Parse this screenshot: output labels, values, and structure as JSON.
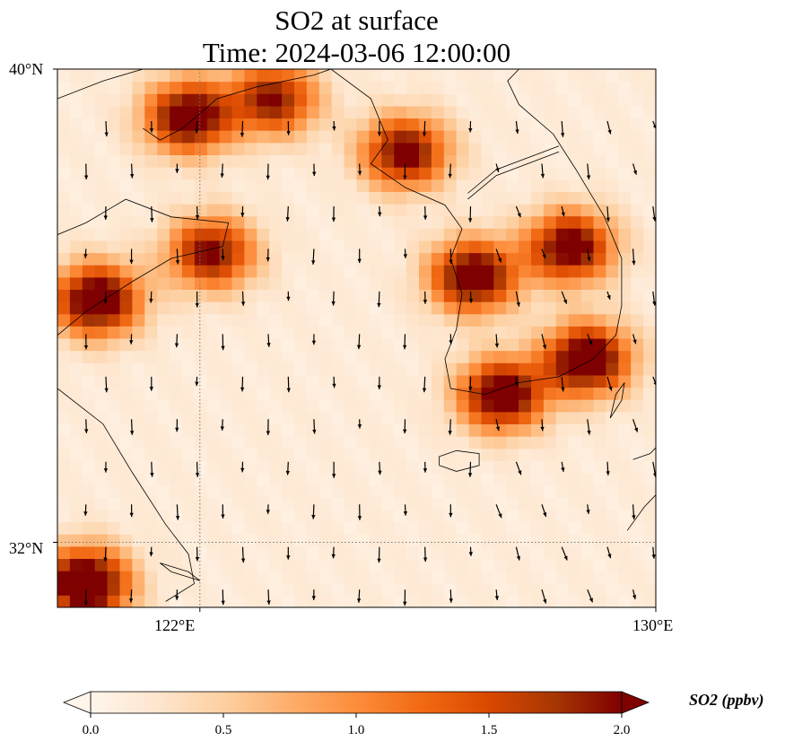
{
  "title": {
    "line1": "SO2 at surface",
    "line2": "Time: 2024-03-06 12:00:00"
  },
  "map": {
    "extent": {
      "lon": [
        119.5,
        130.0
      ],
      "lat": [
        30.9,
        40.0
      ]
    },
    "gridlines": {
      "lon": [
        122.0
      ],
      "lat": [
        32.0
      ]
    },
    "lat_ticks": [
      {
        "value": 40,
        "label": "40°N"
      },
      {
        "value": 32,
        "label": "32°N"
      }
    ],
    "lon_ticks": [
      {
        "value": 122,
        "label": "122°E"
      },
      {
        "value": 130,
        "label": "130°E"
      }
    ],
    "field_name": "SO2",
    "hotspots": [
      {
        "lon": 121.8,
        "lat": 39.2,
        "value": 2.2
      },
      {
        "lon": 123.3,
        "lat": 39.5,
        "value": 1.8
      },
      {
        "lon": 125.6,
        "lat": 38.6,
        "value": 2.0
      },
      {
        "lon": 120.2,
        "lat": 36.1,
        "value": 2.3
      },
      {
        "lon": 122.2,
        "lat": 36.9,
        "value": 1.9
      },
      {
        "lon": 126.8,
        "lat": 36.5,
        "value": 2.2
      },
      {
        "lon": 128.5,
        "lat": 37.0,
        "value": 2.1
      },
      {
        "lon": 128.8,
        "lat": 35.1,
        "value": 2.3
      },
      {
        "lon": 127.3,
        "lat": 34.5,
        "value": 2.2
      },
      {
        "lon": 120.0,
        "lat": 31.3,
        "value": 2.5
      }
    ]
  },
  "colorbar": {
    "min": 0.0,
    "max": 2.0,
    "ticks": [
      {
        "value": 0.0,
        "label": "0.0"
      },
      {
        "value": 0.5,
        "label": "0.5"
      },
      {
        "value": 1.0,
        "label": "1.0"
      },
      {
        "value": 1.5,
        "label": "1.5"
      },
      {
        "value": 2.0,
        "label": "2.0"
      }
    ],
    "label": "SO2 (ppbv)",
    "colormap": [
      "#fff5eb",
      "#fee6ce",
      "#fdd0a2",
      "#fdae6b",
      "#fd8d3c",
      "#f16913",
      "#d94801",
      "#a63603",
      "#7f0000"
    ]
  }
}
